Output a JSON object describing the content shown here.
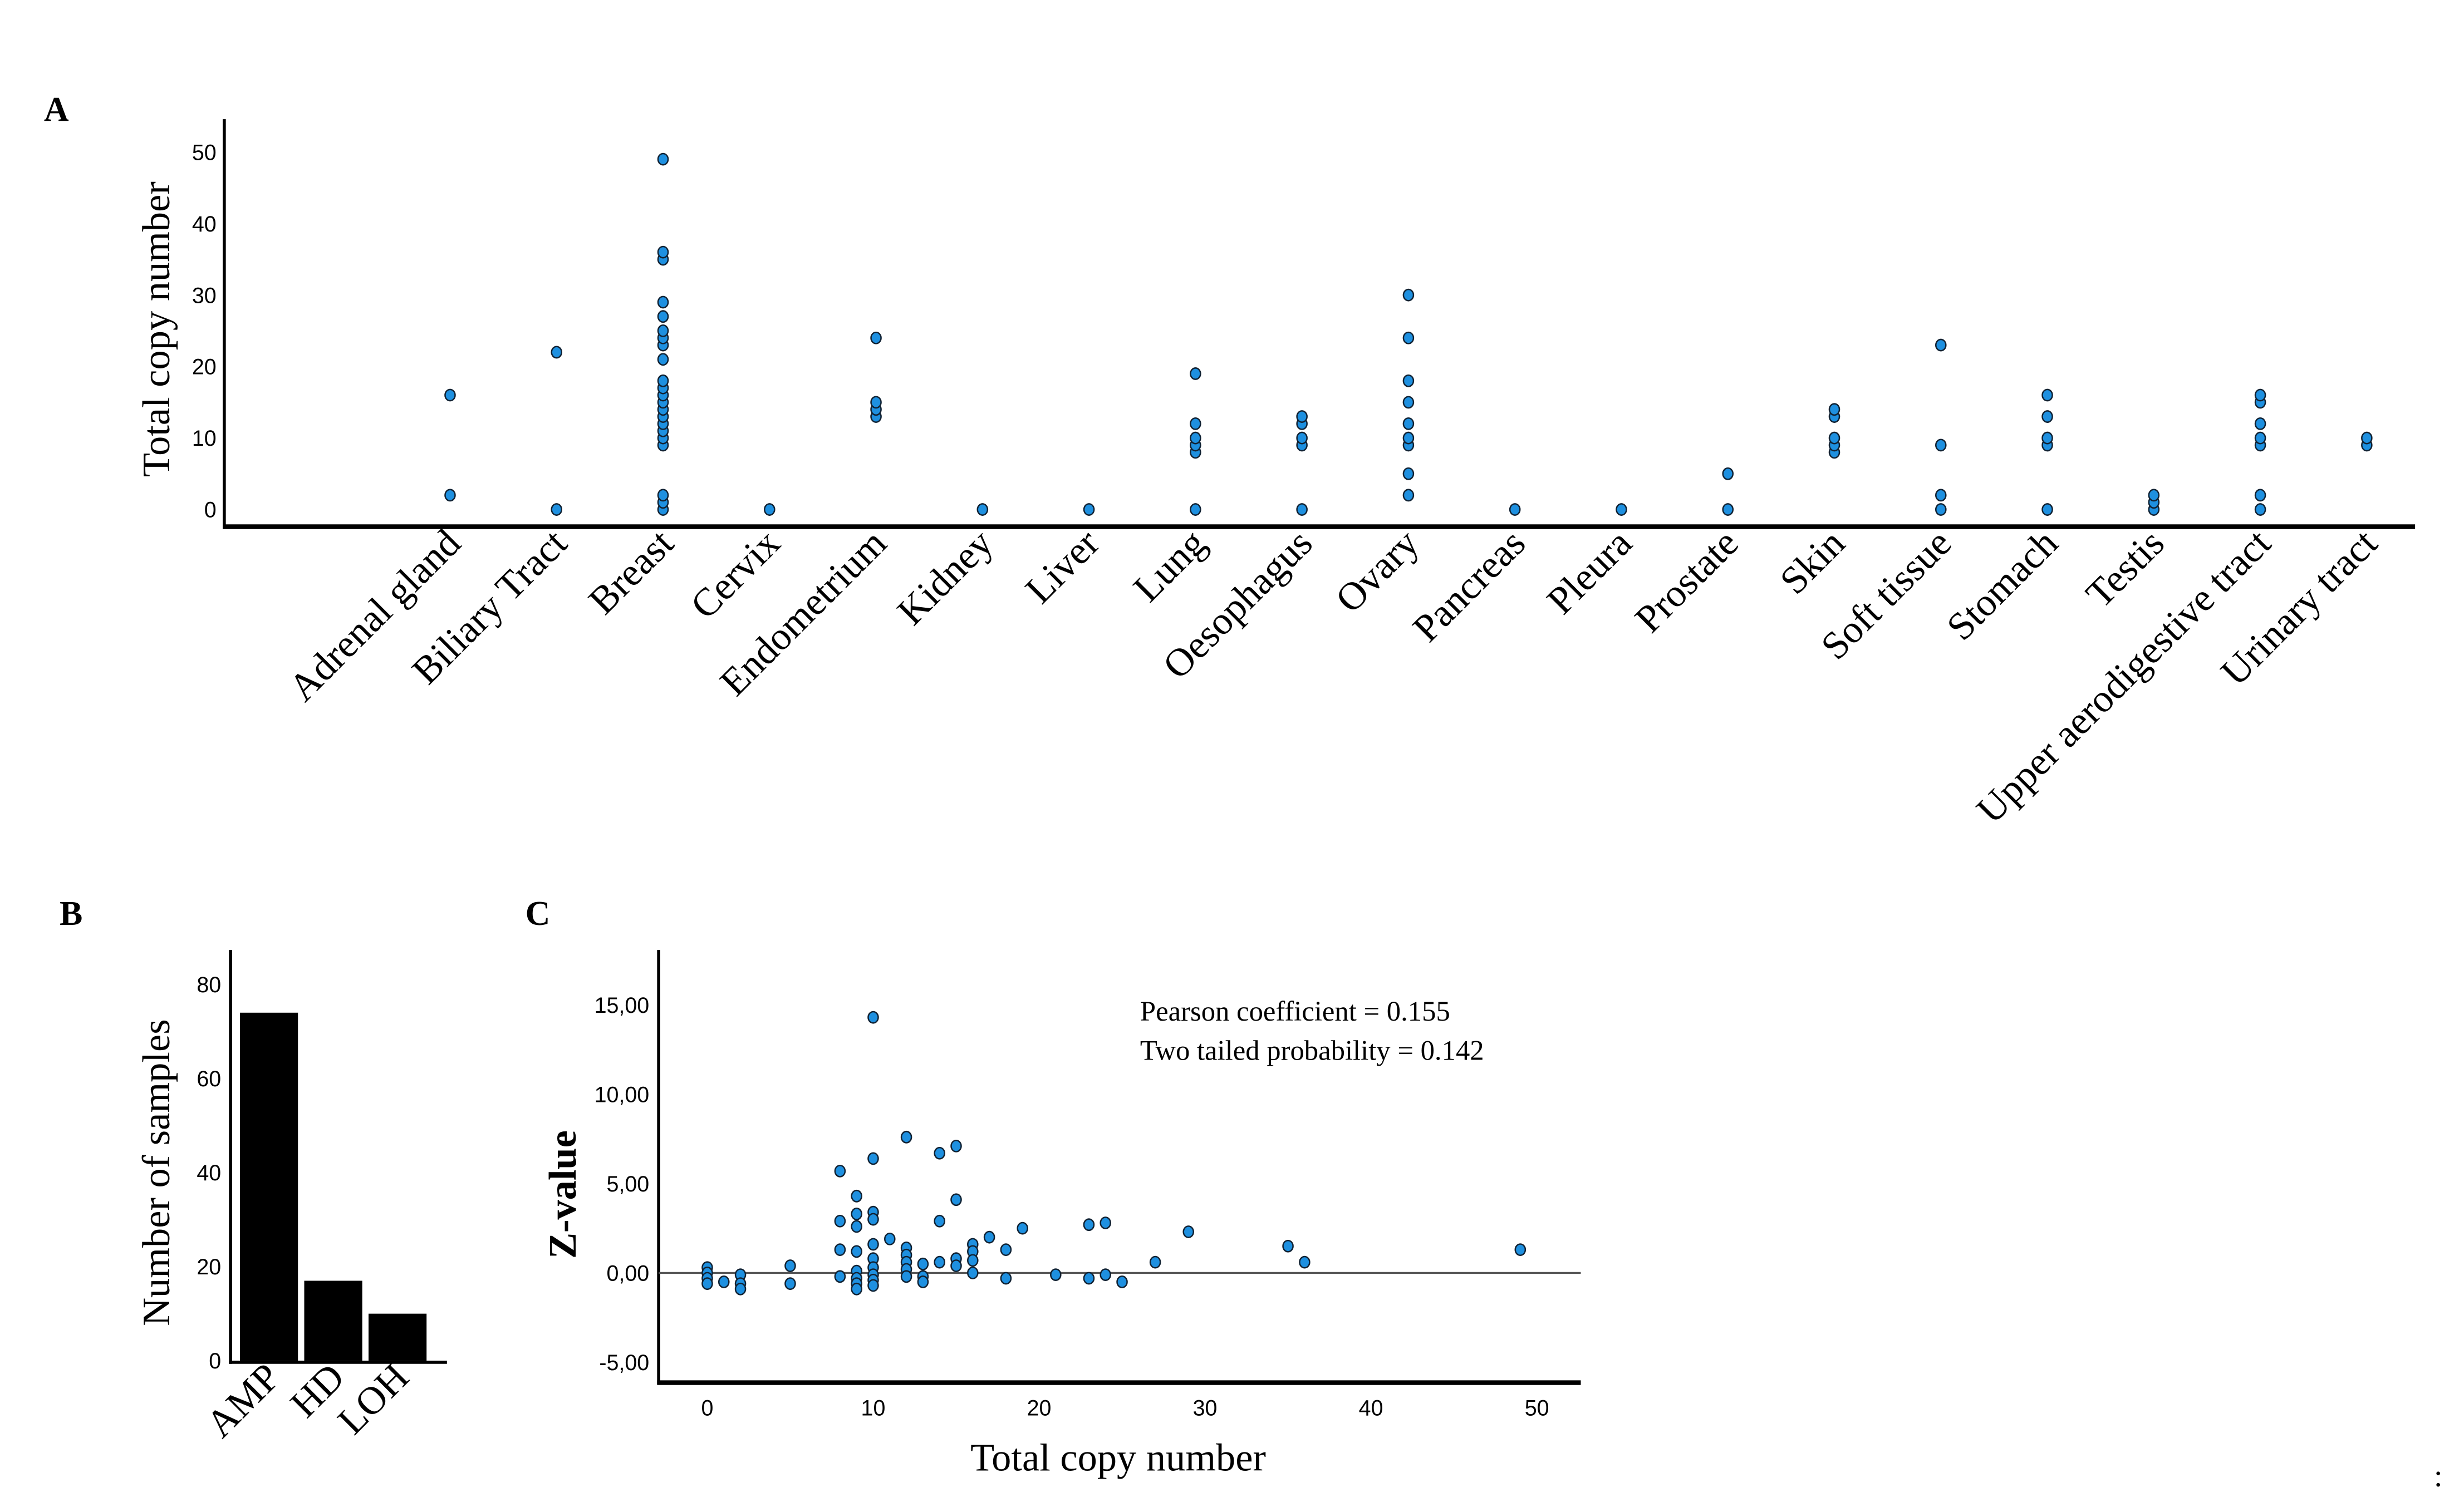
{
  "marker_color": "#1e90e0",
  "trailing_mark": ":",
  "chart_data": [
    {
      "panel": "A",
      "type": "scatter",
      "ylabel": "Total copy number",
      "xlabel": "",
      "ylim": [
        0,
        50
      ],
      "yticks": [
        "0",
        "10",
        "20",
        "30",
        "40",
        "50"
      ],
      "categories": [
        "Adrenal gland",
        "Biliary Tract",
        "Breast",
        "Cervix",
        "Endometrium",
        "Kidney",
        "Liver",
        "Lung",
        "Oesophagus",
        "Ovary",
        "Pancreas",
        "Pleura",
        "Prostate",
        "Skin",
        "Soft tissue",
        "Stomach",
        "Testis",
        "Upper aerodigestive tract",
        "Urinary tract"
      ],
      "values": [
        [
          2,
          16
        ],
        [
          0,
          22
        ],
        [
          0,
          1,
          2,
          9,
          10,
          11,
          12,
          13,
          14,
          15,
          16,
          17,
          18,
          21,
          23,
          24,
          25,
          27,
          29,
          35,
          36,
          49
        ],
        [
          0
        ],
        [
          13,
          14,
          15,
          24
        ],
        [
          0
        ],
        [
          0
        ],
        [
          0,
          8,
          9,
          10,
          12,
          19
        ],
        [
          0,
          9,
          10,
          12,
          13
        ],
        [
          2,
          5,
          9,
          10,
          12,
          15,
          18,
          24,
          30
        ],
        [
          0
        ],
        [
          0
        ],
        [
          0,
          5
        ],
        [
          8,
          9,
          10,
          13,
          14
        ],
        [
          0,
          2,
          9,
          23
        ],
        [
          0,
          9,
          10,
          13,
          16
        ],
        [
          0,
          1,
          2
        ],
        [
          0,
          2,
          9,
          10,
          12,
          15,
          16
        ],
        [
          9,
          10
        ]
      ]
    },
    {
      "panel": "B",
      "type": "bar",
      "ylabel": "Number of samples",
      "ylim": [
        0,
        80
      ],
      "yticks": [
        "0",
        "20",
        "40",
        "60",
        "80"
      ],
      "categories": [
        "AMP",
        "HD",
        "LOH"
      ],
      "values": [
        74,
        17,
        10
      ]
    },
    {
      "panel": "C",
      "type": "scatter",
      "xlabel": "Total copy number",
      "ylabel": "Z-value",
      "xlim": [
        0,
        50
      ],
      "ylim": [
        -5,
        15
      ],
      "xticks": [
        "0",
        "10",
        "20",
        "30",
        "40",
        "50"
      ],
      "yticks": [
        "-5,00",
        "0,00",
        "5,00",
        "10,00",
        "15,00"
      ],
      "annotations": [
        "Pearson coefficient = 0.155",
        "Two tailed probability = 0.142"
      ],
      "reference_line": 0,
      "points": [
        [
          0,
          0.3
        ],
        [
          0,
          0
        ],
        [
          0,
          -0.3
        ],
        [
          0,
          -0.6
        ],
        [
          1,
          -0.5
        ],
        [
          2,
          -0.1
        ],
        [
          2,
          -0.6
        ],
        [
          2,
          -0.9
        ],
        [
          5,
          0.4
        ],
        [
          5,
          -0.6
        ],
        [
          8,
          5.7
        ],
        [
          8,
          2.9
        ],
        [
          8,
          1.3
        ],
        [
          8,
          -0.2
        ],
        [
          9,
          4.3
        ],
        [
          9,
          3.3
        ],
        [
          9,
          2.6
        ],
        [
          9,
          1.2
        ],
        [
          9,
          0.1
        ],
        [
          9,
          -0.3
        ],
        [
          9,
          -0.6
        ],
        [
          9,
          -0.9
        ],
        [
          10,
          14.3
        ],
        [
          10,
          6.4
        ],
        [
          10,
          3.4
        ],
        [
          10,
          3.0
        ],
        [
          10,
          1.6
        ],
        [
          10,
          0.8
        ],
        [
          10,
          0.3
        ],
        [
          10,
          -0.1
        ],
        [
          10,
          -0.4
        ],
        [
          10,
          -0.7
        ],
        [
          11,
          1.9
        ],
        [
          12,
          7.6
        ],
        [
          12,
          1.4
        ],
        [
          12,
          1.0
        ],
        [
          12,
          0.6
        ],
        [
          12,
          0.2
        ],
        [
          12,
          -0.2
        ],
        [
          13,
          0.5
        ],
        [
          13,
          -0.2
        ],
        [
          13,
          -0.5
        ],
        [
          14,
          6.7
        ],
        [
          14,
          2.9
        ],
        [
          14,
          0.6
        ],
        [
          15,
          7.1
        ],
        [
          15,
          4.1
        ],
        [
          15,
          0.8
        ],
        [
          15,
          0.4
        ],
        [
          16,
          1.6
        ],
        [
          16,
          1.2
        ],
        [
          16,
          0.7
        ],
        [
          16,
          0.0
        ],
        [
          17,
          2.0
        ],
        [
          18,
          1.3
        ],
        [
          18,
          -0.3
        ],
        [
          19,
          2.5
        ],
        [
          21,
          -0.1
        ],
        [
          23,
          2.7
        ],
        [
          23,
          -0.3
        ],
        [
          24,
          2.8
        ],
        [
          24,
          -0.1
        ],
        [
          25,
          -0.5
        ],
        [
          27,
          0.6
        ],
        [
          29,
          2.3
        ],
        [
          35,
          1.5
        ],
        [
          36,
          0.6
        ],
        [
          49,
          1.3
        ]
      ]
    }
  ]
}
